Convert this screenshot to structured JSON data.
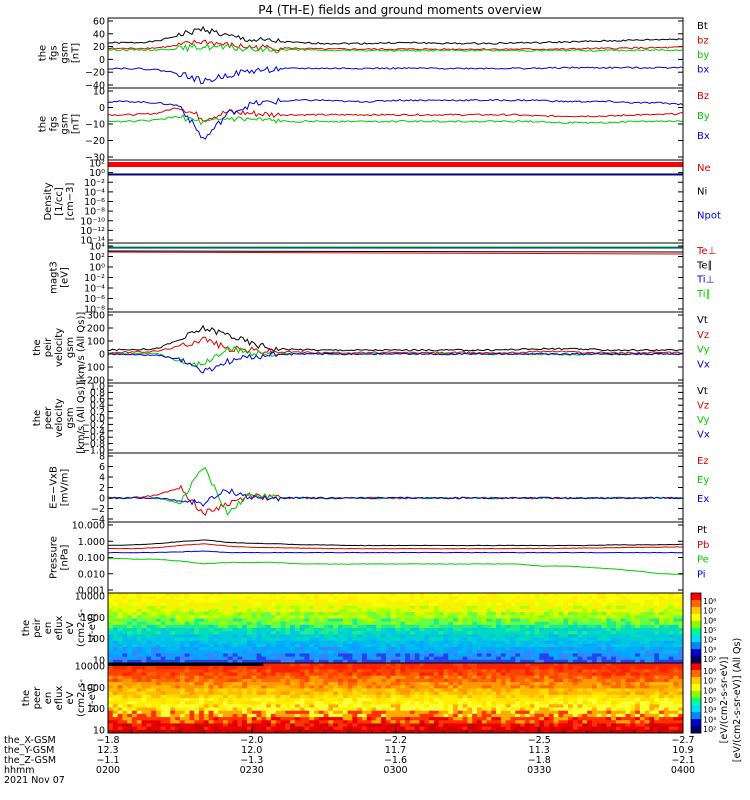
{
  "chart_data": {
    "type": "line",
    "title": "P4 (TH-E) fields and ground moments overview",
    "panels": [
      {
        "id": "fgs_gsm",
        "ylabel": [
          "the",
          "fgs",
          "gsm",
          "[nT]"
        ],
        "ticks": [
          "60",
          "40",
          "20",
          "0",
          "−20",
          "−40"
        ],
        "ylim": [
          -40,
          60
        ],
        "series": [
          {
            "name": "Bt",
            "color": "#000000",
            "values": [
              26,
              26,
              28,
              38,
              48,
              36,
              30,
              28,
              26,
              25,
              25,
              25,
              26,
              26,
              25,
              25,
              25,
              26,
              26,
              27,
              28,
              29,
              30,
              31,
              32
            ]
          },
          {
            "name": "bz",
            "color": "#dd0000",
            "values": [
              17,
              17,
              18,
              22,
              28,
              22,
              19,
              18,
              17,
              16,
              16,
              16,
              16,
              16,
              16,
              16,
              16,
              16,
              16,
              16,
              17,
              17,
              18,
              18,
              19
            ]
          },
          {
            "name": "by",
            "color": "#00cc00",
            "values": [
              15,
              15,
              15,
              17,
              20,
              18,
              16,
              15,
              15,
              14,
              14,
              14,
              14,
              14,
              14,
              14,
              14,
              14,
              14,
              14,
              14,
              14,
              14,
              15,
              15
            ]
          },
          {
            "name": "bx",
            "color": "#0000dd",
            "values": [
              -14,
              -14,
              -16,
              -22,
              -35,
              -24,
              -18,
              -15,
              -14,
              -14,
              -14,
              -14,
              -14,
              -14,
              -14,
              -14,
              -14,
              -14,
              -14,
              -13,
              -13,
              -13,
              -13,
              -13,
              -12
            ]
          }
        ]
      },
      {
        "id": "fgs_gsm2",
        "ylabel": [
          "the",
          "fgs",
          "gsm",
          "[nT]"
        ],
        "ticks": [
          "10",
          "0",
          "−10",
          "−20",
          "−30"
        ],
        "ylim": [
          -35,
          15
        ],
        "series": [
          {
            "name": "Bz",
            "color": "#dd0000",
            "values": [
              -3,
              -3,
              -2,
              3,
              -6,
              -1,
              -2,
              -3,
              -3,
              -3,
              -3,
              -3,
              -3,
              -3,
              -3,
              -3,
              -3,
              -3,
              -4,
              -4,
              -4,
              -4,
              -3,
              -3,
              -2
            ]
          },
          {
            "name": "By",
            "color": "#00cc00",
            "values": [
              -8,
              -8,
              -7,
              -4,
              -10,
              -6,
              -7,
              -8,
              -8,
              -8,
              -8,
              -8,
              -8,
              -8,
              -8,
              -8,
              -8,
              -8,
              -8,
              -9,
              -9,
              -9,
              -8,
              -8,
              -8
            ]
          },
          {
            "name": "Bx",
            "color": "#0000dd",
            "values": [
              7,
              7,
              6,
              4,
              -22,
              -2,
              5,
              7,
              8,
              8,
              7,
              7,
              8,
              8,
              8,
              8,
              8,
              8,
              8,
              7,
              7,
              7,
              6,
              6,
              5
            ]
          }
        ]
      },
      {
        "id": "density",
        "ylabel": [
          "Density",
          "[1/cc]",
          "[cm−3]"
        ],
        "ticks": [
          "10²",
          "10⁰",
          "10⁻²",
          "10⁻⁴",
          "10⁻⁶",
          "10⁻⁸",
          "10⁻¹⁰",
          "10⁻¹²",
          "10⁻¹⁴"
        ],
        "series": [
          {
            "name": "Ne",
            "color": "#dd0000"
          },
          {
            "name": "Ni",
            "color": "#000000"
          },
          {
            "name": "Npot",
            "color": "#0000dd"
          }
        ]
      },
      {
        "id": "temperature",
        "ylabel": [
          "magt3",
          "[eV]"
        ],
        "ticks": [
          "10⁴",
          "10²",
          "10⁰",
          "10⁻²",
          "10⁻⁴",
          "10⁻⁶",
          "10⁻⁸"
        ],
        "series": [
          {
            "name": "Te⊥",
            "color": "#dd0000"
          },
          {
            "name": "Te∥",
            "color": "#000000"
          },
          {
            "name": "Ti⊥",
            "color": "#0000dd"
          },
          {
            "name": "Ti∥",
            "color": "#00cc00"
          }
        ]
      },
      {
        "id": "peir_velocity",
        "ylabel": [
          "the",
          "peir",
          "velocity",
          "gsm",
          "[km/s (All Qs)]"
        ],
        "ticks": [
          "300",
          "200",
          "100",
          "0",
          "−100",
          "−200"
        ],
        "ylim": [
          -200,
          300
        ],
        "series": [
          {
            "name": "Vt",
            "color": "#000000",
            "values": [
              30,
              35,
              40,
              110,
              200,
              150,
              80,
              40,
              35,
              30,
              30,
              30,
              30,
              30,
              30,
              30,
              30,
              35,
              40,
              40,
              35,
              30,
              30,
              30,
              30
            ]
          },
          {
            "name": "Vz",
            "color": "#dd0000",
            "values": [
              10,
              15,
              20,
              60,
              120,
              40,
              30,
              15,
              15,
              10,
              10,
              10,
              10,
              10,
              10,
              10,
              10,
              10,
              20,
              20,
              10,
              10,
              10,
              10,
              10
            ]
          },
          {
            "name": "Vy",
            "color": "#00cc00",
            "values": [
              0,
              0,
              10,
              -60,
              -80,
              40,
              10,
              0,
              0,
              0,
              0,
              0,
              0,
              0,
              0,
              0,
              0,
              0,
              0,
              -10,
              0,
              0,
              0,
              0,
              0
            ]
          },
          {
            "name": "Vx",
            "color": "#0000dd",
            "values": [
              0,
              -5,
              -10,
              -40,
              -140,
              -60,
              -20,
              -5,
              0,
              0,
              0,
              0,
              0,
              0,
              0,
              0,
              0,
              0,
              0,
              0,
              0,
              0,
              0,
              0,
              0
            ]
          }
        ]
      },
      {
        "id": "peer_velocity",
        "ylabel": [
          "the",
          "peer",
          "velocity",
          "gsm",
          "[km/s (All Qs)]"
        ],
        "ticks": [
          "1.0",
          "0.8",
          "0.6",
          "0.4",
          "0.2",
          "0.0",
          "−0.2",
          "−0.4",
          "−0.6",
          "−0.8",
          "−1.0"
        ],
        "ylim": [
          -1,
          1
        ],
        "series": [
          {
            "name": "Vt",
            "color": "#000000"
          },
          {
            "name": "Vz",
            "color": "#dd0000"
          },
          {
            "name": "Vy",
            "color": "#00cc00"
          },
          {
            "name": "Vx",
            "color": "#0000dd"
          }
        ]
      },
      {
        "id": "efield",
        "ylabel": [
          "E=−VxB",
          "[mV/m]"
        ],
        "ticks": [
          "8",
          "6",
          "4",
          "2",
          "0",
          "−2",
          "−4"
        ],
        "ylim": [
          -4,
          8
        ],
        "series": [
          {
            "name": "Ez",
            "color": "#dd0000",
            "values": [
              0,
              0,
              0.5,
              2,
              -3,
              -1,
              0.5,
              0,
              0,
              0,
              0,
              0,
              0,
              0,
              0,
              0,
              0,
              0,
              0,
              0,
              0,
              0,
              0,
              0,
              0
            ]
          },
          {
            "name": "Ey",
            "color": "#00cc00",
            "values": [
              0,
              0,
              0,
              -1,
              6,
              -3,
              1,
              0,
              0,
              0,
              0,
              0,
              0,
              0,
              0,
              0,
              0,
              0,
              0,
              0,
              0,
              0,
              0,
              0,
              0
            ]
          },
          {
            "name": "Ex",
            "color": "#0000dd",
            "values": [
              0,
              0,
              0,
              -0.5,
              -1,
              1.5,
              0,
              0,
              0,
              0,
              0,
              0,
              0,
              0,
              0,
              0,
              0,
              0,
              0,
              0,
              0,
              0,
              0,
              0,
              0
            ]
          }
        ]
      },
      {
        "id": "pressure",
        "ylabel": [
          "Pressure",
          "[nPa]"
        ],
        "ticks": [
          "10.000",
          "1.000",
          "0.100",
          "0.010",
          "0.001"
        ],
        "series": [
          {
            "name": "Pt",
            "color": "#000000",
            "values": [
              0.55,
              0.6,
              0.7,
              0.95,
              1.2,
              0.85,
              0.75,
              0.7,
              0.6,
              0.6,
              0.55,
              0.55,
              0.55,
              0.55,
              0.55,
              0.55,
              0.55,
              0.55,
              0.55,
              0.55,
              0.55,
              0.6,
              0.6,
              0.6,
              0.65
            ]
          },
          {
            "name": "Pb",
            "color": "#dd0000",
            "values": [
              0.35,
              0.35,
              0.4,
              0.55,
              0.7,
              0.5,
              0.42,
              0.4,
              0.38,
              0.36,
              0.35,
              0.35,
              0.35,
              0.35,
              0.35,
              0.35,
              0.35,
              0.36,
              0.36,
              0.37,
              0.38,
              0.4,
              0.42,
              0.43,
              0.45
            ]
          },
          {
            "name": "Pe",
            "color": "#00cc00",
            "values": [
              0.09,
              0.08,
              0.08,
              0.06,
              0.04,
              0.05,
              0.05,
              0.05,
              0.04,
              0.04,
              0.04,
              0.04,
              0.04,
              0.04,
              0.04,
              0.04,
              0.04,
              0.04,
              0.03,
              0.03,
              0.025,
              0.02,
              0.015,
              0.01,
              0.009
            ]
          },
          {
            "name": "Pi",
            "color": "#0000dd",
            "values": [
              0.2,
              0.2,
              0.2,
              0.22,
              0.25,
              0.2,
              0.2,
              0.2,
              0.2,
              0.2,
              0.2,
              0.2,
              0.2,
              0.2,
              0.2,
              0.2,
              0.2,
              0.2,
              0.2,
              0.2,
              0.2,
              0.2,
              0.2,
              0.2,
              0.2
            ]
          }
        ]
      },
      {
        "id": "peir_spec",
        "ylabel": [
          "the",
          "peir",
          "en",
          "eflux",
          "eV",
          "(cm2-s-",
          "sr-eV)"
        ],
        "ticks": [
          "10000",
          "1000",
          "100",
          "10"
        ]
      },
      {
        "id": "peer_spec",
        "ylabel": [
          "the",
          "peer",
          "en",
          "eflux",
          "eV",
          "(cm2-s-",
          "sr-eV)"
        ],
        "ticks": [
          "10000",
          "1000",
          "100",
          "10"
        ]
      }
    ],
    "colorbar": {
      "ticks": [
        "10⁸",
        "10⁷",
        "10⁶",
        "10⁵",
        "10⁴",
        "10³",
        "10²"
      ],
      "label": "[eV/(cm2-s-sr-eV)]",
      "label2": "[eV/(cm2-s-sr-eV)] (All Qs)"
    },
    "xaxis": {
      "row_labels": [
        "the_X-GSM",
        "the_Y-GSM",
        "the_Z-GSM",
        "hhmm",
        "2021 Nov 07"
      ],
      "columns": [
        [
          "−1.8",
          "12.3",
          "−1.1",
          "0200"
        ],
        [
          "−2.0",
          "12.0",
          "−1.3",
          "0230"
        ],
        [
          "−2.2",
          "11.7",
          "−1.6",
          "0300"
        ],
        [
          "−2.5",
          "11.3",
          "−1.8",
          "0330"
        ],
        [
          "−2.7",
          "10.9",
          "−2.1",
          "0400"
        ]
      ]
    }
  }
}
